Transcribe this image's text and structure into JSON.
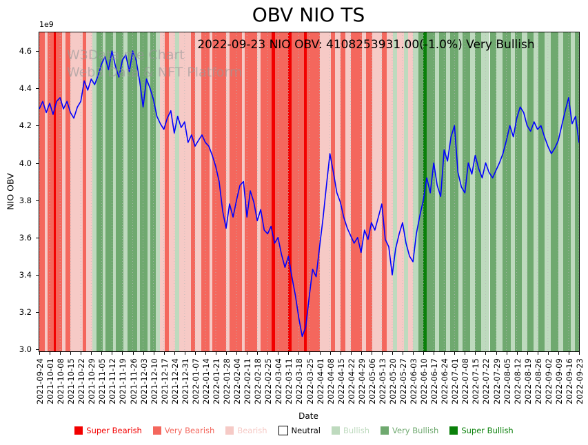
{
  "chart_data": {
    "type": "line",
    "title": "OBV NIO TS",
    "annotation": "2022-09-23 NIO OBV: 4108253931.00(-1.0%) Very Bullish",
    "watermark_line1": "W3Data.me Chart",
    "watermark_line2": "Web3 Data & NFT Platform",
    "xlabel": "Date",
    "ylabel": "NIO OBV",
    "y_offset_text": "1e9",
    "xlim": [
      0,
      52
    ],
    "ylim": [
      2.99,
      4.7
    ],
    "ytick_labels": [
      "3.0",
      "3.2",
      "3.4",
      "3.6",
      "3.8",
      "4.0",
      "4.2",
      "4.4",
      "4.6"
    ],
    "ytick_values": [
      3.0,
      3.2,
      3.4,
      3.6,
      3.8,
      4.0,
      4.2,
      4.4,
      4.6
    ],
    "x_tick_labels": [
      "2021-09-24",
      "2021-10-01",
      "2021-10-08",
      "2021-10-15",
      "2021-10-22",
      "2021-10-29",
      "2021-11-05",
      "2021-11-12",
      "2021-11-19",
      "2021-11-26",
      "2021-12-03",
      "2021-12-10",
      "2021-12-17",
      "2021-12-24",
      "2021-12-31",
      "2022-01-07",
      "2022-01-14",
      "2022-01-21",
      "2022-01-28",
      "2022-02-04",
      "2022-02-11",
      "2022-02-18",
      "2022-02-25",
      "2022-03-04",
      "2022-03-11",
      "2022-03-18",
      "2022-03-25",
      "2022-04-01",
      "2022-04-08",
      "2022-04-15",
      "2022-04-22",
      "2022-04-29",
      "2022-05-06",
      "2022-05-13",
      "2022-05-20",
      "2022-05-27",
      "2022-06-03",
      "2022-06-10",
      "2022-06-17",
      "2022-06-24",
      "2022-07-01",
      "2022-07-08",
      "2022-07-15",
      "2022-07-22",
      "2022-07-29",
      "2022-08-05",
      "2022-08-12",
      "2022-08-19",
      "2022-08-26",
      "2022-09-02",
      "2022-09-09",
      "2022-09-16",
      "2022-09-23"
    ],
    "grid": "vertical-dotted",
    "legend_position": "bottom",
    "sentiment_colors": {
      "Super Bearish": "#f20000",
      "Very Bearish": "#f4675d",
      "Bearish": "#f6cac6",
      "Neutral": "#ffffff",
      "Bullish": "#bedabe",
      "Very Bullish": "#6fa96f",
      "Super Bullish": "#0a800a"
    },
    "legend": [
      {
        "label": "Super Bearish",
        "swatch": "#f20000",
        "text_color": "#f20000"
      },
      {
        "label": "Very Bearish",
        "swatch": "#f4675d",
        "text_color": "#f4675d"
      },
      {
        "label": "Bearish",
        "swatch": "#f6cac6",
        "text_color": "#f6cac6"
      },
      {
        "label": "Neutral",
        "swatch": "#ffffff",
        "text_color": "#000000",
        "edge": "#000000"
      },
      {
        "label": "Bullish",
        "swatch": "#bedabe",
        "text_color": "#bedabe"
      },
      {
        "label": "Very Bullish",
        "swatch": "#6fa96f",
        "text_color": "#6fa96f"
      },
      {
        "label": "Super Bullish",
        "swatch": "#0a800a",
        "text_color": "#0a800a"
      }
    ],
    "series": [
      {
        "name": "NIO OBV",
        "color": "#0000ff",
        "unit": "1e9",
        "points": [
          [
            0,
            4.29
          ],
          [
            0.33,
            4.33
          ],
          [
            0.67,
            4.27
          ],
          [
            1,
            4.32
          ],
          [
            1.33,
            4.26
          ],
          [
            1.67,
            4.33
          ],
          [
            2,
            4.35
          ],
          [
            2.33,
            4.29
          ],
          [
            2.67,
            4.33
          ],
          [
            3,
            4.27
          ],
          [
            3.33,
            4.24
          ],
          [
            3.67,
            4.3
          ],
          [
            4,
            4.33
          ],
          [
            4.33,
            4.44
          ],
          [
            4.67,
            4.39
          ],
          [
            5,
            4.45
          ],
          [
            5.33,
            4.42
          ],
          [
            5.67,
            4.47
          ],
          [
            6,
            4.53
          ],
          [
            6.33,
            4.57
          ],
          [
            6.67,
            4.5
          ],
          [
            7,
            4.6
          ],
          [
            7.33,
            4.52
          ],
          [
            7.67,
            4.46
          ],
          [
            8,
            4.55
          ],
          [
            8.33,
            4.58
          ],
          [
            8.67,
            4.49
          ],
          [
            9,
            4.6
          ],
          [
            9.33,
            4.55
          ],
          [
            9.67,
            4.44
          ],
          [
            10,
            4.3
          ],
          [
            10.33,
            4.45
          ],
          [
            10.67,
            4.4
          ],
          [
            11,
            4.34
          ],
          [
            11.33,
            4.25
          ],
          [
            11.67,
            4.21
          ],
          [
            12,
            4.18
          ],
          [
            12.33,
            4.24
          ],
          [
            12.67,
            4.28
          ],
          [
            13,
            4.16
          ],
          [
            13.33,
            4.25
          ],
          [
            13.67,
            4.19
          ],
          [
            14,
            4.22
          ],
          [
            14.33,
            4.11
          ],
          [
            14.67,
            4.15
          ],
          [
            15,
            4.09
          ],
          [
            15.33,
            4.12
          ],
          [
            15.67,
            4.15
          ],
          [
            16,
            4.11
          ],
          [
            16.33,
            4.09
          ],
          [
            16.67,
            4.04
          ],
          [
            17,
            3.98
          ],
          [
            17.33,
            3.9
          ],
          [
            17.67,
            3.74
          ],
          [
            18,
            3.65
          ],
          [
            18.33,
            3.78
          ],
          [
            18.67,
            3.71
          ],
          [
            19,
            3.8
          ],
          [
            19.33,
            3.88
          ],
          [
            19.67,
            3.9
          ],
          [
            20,
            3.71
          ],
          [
            20.33,
            3.85
          ],
          [
            20.67,
            3.79
          ],
          [
            21,
            3.69
          ],
          [
            21.33,
            3.75
          ],
          [
            21.67,
            3.64
          ],
          [
            22,
            3.62
          ],
          [
            22.33,
            3.66
          ],
          [
            22.67,
            3.57
          ],
          [
            23,
            3.6
          ],
          [
            23.33,
            3.51
          ],
          [
            23.67,
            3.44
          ],
          [
            24,
            3.5
          ],
          [
            24.33,
            3.39
          ],
          [
            24.67,
            3.29
          ],
          [
            25,
            3.17
          ],
          [
            25.33,
            3.07
          ],
          [
            25.67,
            3.12
          ],
          [
            26,
            3.28
          ],
          [
            26.33,
            3.43
          ],
          [
            26.67,
            3.39
          ],
          [
            27,
            3.55
          ],
          [
            27.33,
            3.7
          ],
          [
            27.67,
            3.88
          ],
          [
            28,
            4.05
          ],
          [
            28.33,
            3.95
          ],
          [
            28.67,
            3.84
          ],
          [
            29,
            3.79
          ],
          [
            29.33,
            3.71
          ],
          [
            29.67,
            3.65
          ],
          [
            30,
            3.61
          ],
          [
            30.33,
            3.57
          ],
          [
            30.67,
            3.6
          ],
          [
            31,
            3.52
          ],
          [
            31.33,
            3.64
          ],
          [
            31.67,
            3.59
          ],
          [
            32,
            3.68
          ],
          [
            32.33,
            3.64
          ],
          [
            32.67,
            3.71
          ],
          [
            33,
            3.78
          ],
          [
            33.33,
            3.59
          ],
          [
            33.67,
            3.55
          ],
          [
            34,
            3.4
          ],
          [
            34.33,
            3.54
          ],
          [
            34.67,
            3.62
          ],
          [
            35,
            3.68
          ],
          [
            35.33,
            3.57
          ],
          [
            35.67,
            3.5
          ],
          [
            36,
            3.47
          ],
          [
            36.33,
            3.62
          ],
          [
            36.67,
            3.72
          ],
          [
            37,
            3.8
          ],
          [
            37.33,
            3.92
          ],
          [
            37.67,
            3.84
          ],
          [
            38,
            4.0
          ],
          [
            38.33,
            3.88
          ],
          [
            38.67,
            3.82
          ],
          [
            39,
            4.07
          ],
          [
            39.33,
            4.01
          ],
          [
            39.67,
            4.14
          ],
          [
            40,
            4.2
          ],
          [
            40.33,
            3.95
          ],
          [
            40.67,
            3.87
          ],
          [
            41,
            3.84
          ],
          [
            41.33,
            4.0
          ],
          [
            41.67,
            3.94
          ],
          [
            42,
            4.04
          ],
          [
            42.33,
            3.97
          ],
          [
            42.67,
            3.92
          ],
          [
            43,
            4.0
          ],
          [
            43.33,
            3.95
          ],
          [
            43.67,
            3.92
          ],
          [
            44,
            3.96
          ],
          [
            44.33,
            4.0
          ],
          [
            44.67,
            4.05
          ],
          [
            45,
            4.12
          ],
          [
            45.33,
            4.2
          ],
          [
            45.67,
            4.14
          ],
          [
            46,
            4.24
          ],
          [
            46.33,
            4.3
          ],
          [
            46.67,
            4.27
          ],
          [
            47,
            4.2
          ],
          [
            47.33,
            4.17
          ],
          [
            47.67,
            4.22
          ],
          [
            48,
            4.18
          ],
          [
            48.33,
            4.2
          ],
          [
            48.67,
            4.14
          ],
          [
            49,
            4.09
          ],
          [
            49.33,
            4.05
          ],
          [
            49.67,
            4.08
          ],
          [
            50,
            4.12
          ],
          [
            50.33,
            4.2
          ],
          [
            50.67,
            4.28
          ],
          [
            51,
            4.35
          ],
          [
            51.33,
            4.21
          ],
          [
            51.67,
            4.25
          ],
          [
            52,
            4.108
          ]
        ]
      }
    ],
    "bands": [
      [
        0.0,
        0.5,
        "Very Bearish"
      ],
      [
        0.5,
        0.8,
        "Bearish"
      ],
      [
        0.8,
        1.4,
        "Very Bearish"
      ],
      [
        1.4,
        1.6,
        "Super Bearish"
      ],
      [
        1.6,
        2.2,
        "Very Bearish"
      ],
      [
        2.2,
        2.5,
        "Bearish"
      ],
      [
        2.5,
        3.0,
        "Very Bearish"
      ],
      [
        3.0,
        4.2,
        "Bearish"
      ],
      [
        4.2,
        4.5,
        "Very Bearish"
      ],
      [
        4.5,
        5.1,
        "Bearish"
      ],
      [
        5.1,
        5.5,
        "Bullish"
      ],
      [
        5.5,
        6.1,
        "Very Bullish"
      ],
      [
        6.1,
        6.4,
        "Bullish"
      ],
      [
        6.4,
        7.1,
        "Very Bullish"
      ],
      [
        7.1,
        7.4,
        "Bullish"
      ],
      [
        7.4,
        8.1,
        "Very Bullish"
      ],
      [
        8.1,
        8.5,
        "Bullish"
      ],
      [
        8.5,
        9.4,
        "Very Bullish"
      ],
      [
        9.4,
        9.7,
        "Bullish"
      ],
      [
        9.7,
        10.4,
        "Very Bullish"
      ],
      [
        10.4,
        10.7,
        "Bullish"
      ],
      [
        10.7,
        11.2,
        "Very Bullish"
      ],
      [
        11.2,
        11.6,
        "Bullish"
      ],
      [
        11.6,
        12.1,
        "Bearish"
      ],
      [
        12.1,
        12.5,
        "Very Bearish"
      ],
      [
        12.5,
        13.1,
        "Bearish"
      ],
      [
        13.1,
        13.5,
        "Bullish"
      ],
      [
        13.5,
        14.6,
        "Bearish"
      ],
      [
        14.6,
        15.0,
        "Very Bearish"
      ],
      [
        15.0,
        15.6,
        "Bearish"
      ],
      [
        15.6,
        16.4,
        "Very Bearish"
      ],
      [
        16.4,
        16.7,
        "Bearish"
      ],
      [
        16.7,
        18.0,
        "Very Bearish"
      ],
      [
        18.0,
        18.3,
        "Bearish"
      ],
      [
        18.3,
        19.5,
        "Very Bearish"
      ],
      [
        19.5,
        19.8,
        "Bearish"
      ],
      [
        19.8,
        21.0,
        "Very Bearish"
      ],
      [
        21.0,
        21.3,
        "Bearish"
      ],
      [
        21.3,
        22.4,
        "Very Bearish"
      ],
      [
        22.4,
        22.7,
        "Super Bearish"
      ],
      [
        22.7,
        24.0,
        "Very Bearish"
      ],
      [
        24.0,
        24.3,
        "Super Bearish"
      ],
      [
        24.3,
        25.5,
        "Very Bearish"
      ],
      [
        25.5,
        25.8,
        "Super Bearish"
      ],
      [
        25.8,
        27.0,
        "Very Bearish"
      ],
      [
        27.0,
        28.1,
        "Bearish"
      ],
      [
        28.1,
        28.5,
        "Very Bearish"
      ],
      [
        28.5,
        29.0,
        "Bearish"
      ],
      [
        29.0,
        29.5,
        "Very Bearish"
      ],
      [
        29.5,
        30.0,
        "Bearish"
      ],
      [
        30.0,
        31.1,
        "Very Bearish"
      ],
      [
        31.1,
        31.5,
        "Bearish"
      ],
      [
        31.5,
        32.1,
        "Very Bearish"
      ],
      [
        32.1,
        33.0,
        "Bearish"
      ],
      [
        33.0,
        33.5,
        "Very Bearish"
      ],
      [
        33.5,
        34.1,
        "Bearish"
      ],
      [
        34.1,
        34.5,
        "Bullish"
      ],
      [
        34.5,
        35.1,
        "Bearish"
      ],
      [
        35.1,
        35.5,
        "Bullish"
      ],
      [
        35.5,
        36.0,
        "Bearish"
      ],
      [
        36.0,
        36.5,
        "Bullish"
      ],
      [
        36.5,
        37.0,
        "Very Bullish"
      ],
      [
        37.0,
        37.3,
        "Super Bullish"
      ],
      [
        37.3,
        38.1,
        "Very Bullish"
      ],
      [
        38.1,
        38.5,
        "Bullish"
      ],
      [
        38.5,
        39.2,
        "Very Bullish"
      ],
      [
        39.2,
        39.6,
        "Bullish"
      ],
      [
        39.6,
        40.4,
        "Very Bullish"
      ],
      [
        40.4,
        40.8,
        "Bullish"
      ],
      [
        40.8,
        41.5,
        "Very Bullish"
      ],
      [
        41.5,
        42.0,
        "Bullish"
      ],
      [
        42.0,
        42.6,
        "Very Bullish"
      ],
      [
        42.6,
        43.4,
        "Bullish"
      ],
      [
        43.4,
        44.0,
        "Very Bullish"
      ],
      [
        44.0,
        44.6,
        "Bullish"
      ],
      [
        44.6,
        45.4,
        "Very Bullish"
      ],
      [
        45.4,
        45.8,
        "Bullish"
      ],
      [
        45.8,
        46.5,
        "Very Bullish"
      ],
      [
        46.5,
        47.0,
        "Bullish"
      ],
      [
        47.0,
        47.6,
        "Very Bullish"
      ],
      [
        47.6,
        48.1,
        "Bullish"
      ],
      [
        48.1,
        48.7,
        "Very Bullish"
      ],
      [
        48.7,
        49.3,
        "Bullish"
      ],
      [
        49.3,
        50.0,
        "Very Bullish"
      ],
      [
        50.0,
        50.5,
        "Bullish"
      ],
      [
        50.5,
        51.2,
        "Very Bullish"
      ],
      [
        51.2,
        51.6,
        "Bullish"
      ],
      [
        51.6,
        52.0,
        "Very Bullish"
      ]
    ]
  }
}
